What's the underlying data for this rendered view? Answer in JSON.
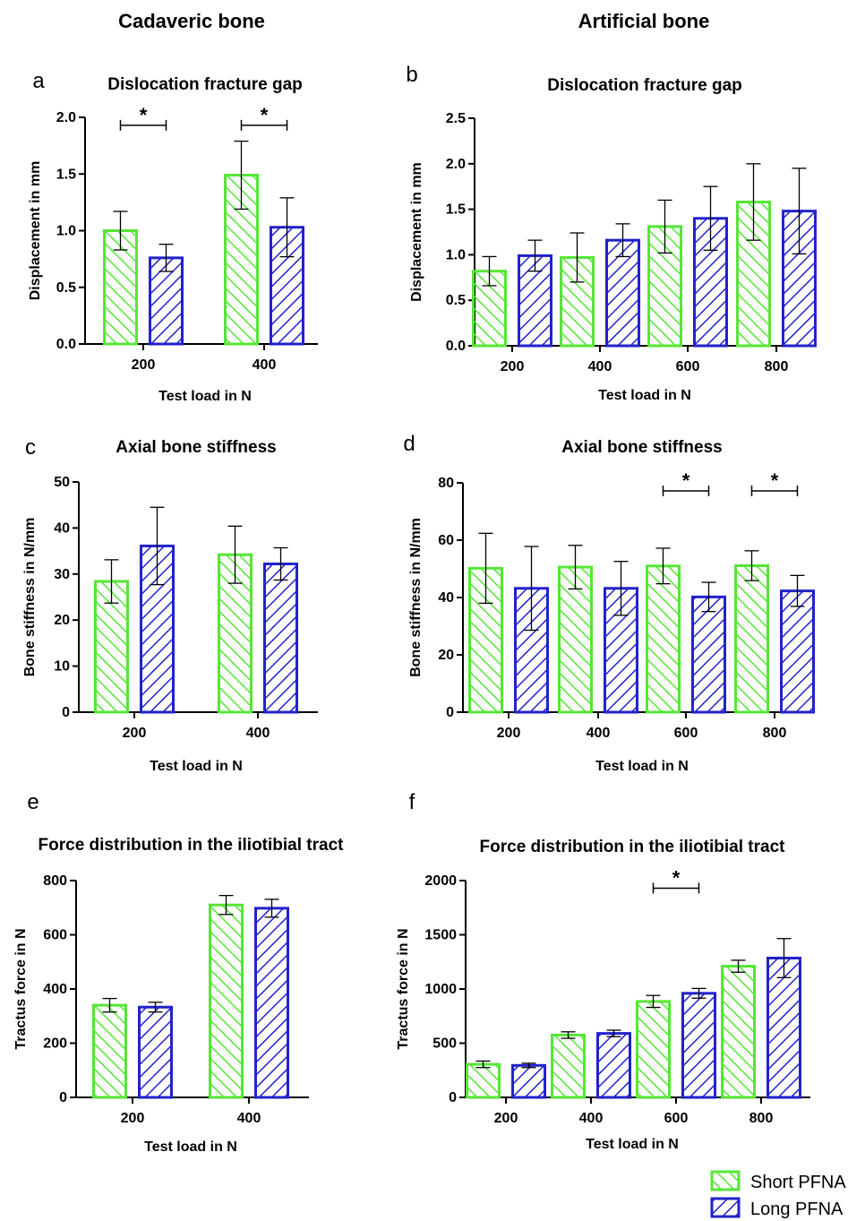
{
  "column_headers": [
    "Cadaveric bone",
    "Artificial bone"
  ],
  "colors": {
    "short": "#55e635",
    "long": "#2222cc",
    "axis": "#000000",
    "error": "#000000"
  },
  "legend": [
    {
      "label": "Short PFNA",
      "color": "#55e635"
    },
    {
      "label": "Long PFNA",
      "color": "#2222cc"
    }
  ],
  "chart_data": [
    {
      "panel": "a",
      "type": "bar",
      "title": "Dislocation fracture gap",
      "xlabel": "Test load in N",
      "ylabel": "Displacement in mm",
      "categories": [
        "200",
        "400"
      ],
      "ylim": [
        0,
        2.0
      ],
      "yticks": [
        "0.0",
        "0.5",
        "1.0",
        "1.5",
        "2.0"
      ],
      "series": [
        {
          "name": "Short PFNA",
          "values": [
            1.0,
            1.49
          ],
          "err": [
            0.17,
            0.3
          ]
        },
        {
          "name": "Long PFNA",
          "values": [
            0.76,
            1.03
          ],
          "err": [
            0.12,
            0.26
          ]
        }
      ],
      "significance": [
        {
          "category": 0,
          "label": "*"
        },
        {
          "category": 1,
          "label": "*"
        }
      ]
    },
    {
      "panel": "b",
      "type": "bar",
      "title": "Dislocation fracture gap",
      "xlabel": "Test load in N",
      "ylabel": "Displacement in mm",
      "categories": [
        "200",
        "400",
        "600",
        "800"
      ],
      "ylim": [
        0,
        2.5
      ],
      "yticks": [
        "0.0",
        "0.5",
        "1.0",
        "1.5",
        "2.0",
        "2.5"
      ],
      "series": [
        {
          "name": "Short PFNA",
          "values": [
            0.82,
            0.97,
            1.31,
            1.58
          ],
          "err": [
            0.16,
            0.27,
            0.29,
            0.42
          ]
        },
        {
          "name": "Long PFNA",
          "values": [
            0.99,
            1.16,
            1.4,
            1.48
          ],
          "err": [
            0.17,
            0.18,
            0.35,
            0.47
          ]
        }
      ],
      "significance": []
    },
    {
      "panel": "c",
      "type": "bar",
      "title": "Axial bone stiffness",
      "xlabel": "Test load in N",
      "ylabel": "Bone stiffness in N/mm",
      "categories": [
        "200",
        "400"
      ],
      "ylim": [
        0,
        50
      ],
      "yticks": [
        "0",
        "10",
        "20",
        "30",
        "40",
        "50"
      ],
      "series": [
        {
          "name": "Short PFNA",
          "values": [
            28.4,
            34.2
          ],
          "err": [
            4.7,
            6.2
          ]
        },
        {
          "name": "Long PFNA",
          "values": [
            36.1,
            32.2
          ],
          "err": [
            8.4,
            3.5
          ]
        }
      ],
      "significance": []
    },
    {
      "panel": "d",
      "type": "bar",
      "title": "Axial bone stiffness",
      "xlabel": "Test load in N",
      "ylabel": "Bone stiffness in N/mm",
      "categories": [
        "200",
        "400",
        "600",
        "800"
      ],
      "ylim": [
        0,
        80
      ],
      "yticks": [
        "0",
        "20",
        "40",
        "60",
        "80"
      ],
      "series": [
        {
          "name": "Short PFNA",
          "values": [
            50.2,
            50.6,
            51,
            51.1
          ],
          "err": [
            12.2,
            7.6,
            6.2,
            5.2
          ]
        },
        {
          "name": "Long PFNA",
          "values": [
            43.2,
            43.2,
            40.2,
            42.3
          ],
          "err": [
            14.6,
            9.4,
            5.1,
            5.4
          ]
        }
      ],
      "significance": [
        {
          "category": 2,
          "label": "*"
        },
        {
          "category": 3,
          "label": "*"
        }
      ]
    },
    {
      "panel": "e",
      "type": "bar",
      "title": "Force distribution in the iliotibial tract",
      "xlabel": "Test load in N",
      "ylabel": "Tractus force in N",
      "categories": [
        "200",
        "400"
      ],
      "ylim": [
        0,
        800
      ],
      "yticks": [
        "0",
        "200",
        "400",
        "600",
        "800"
      ],
      "series": [
        {
          "name": "Short PFNA",
          "values": [
            340,
            710
          ],
          "err": [
            25,
            35
          ]
        },
        {
          "name": "Long PFNA",
          "values": [
            333,
            698
          ],
          "err": [
            18,
            33
          ]
        }
      ],
      "significance": []
    },
    {
      "panel": "f",
      "type": "bar",
      "title": "Force distribution in the iliotibial tract",
      "xlabel": "Test load in N",
      "ylabel": "Tractus force in N",
      "categories": [
        "200",
        "400",
        "600",
        "800"
      ],
      "ylim": [
        0,
        2000
      ],
      "yticks": [
        "0",
        "500",
        "1000",
        "1500",
        "2000"
      ],
      "series": [
        {
          "name": "Short PFNA",
          "values": [
            305,
            575,
            885,
            1210
          ],
          "err": [
            30,
            30,
            55,
            55
          ]
        },
        {
          "name": "Long PFNA",
          "values": [
            295,
            590,
            960,
            1285
          ],
          "err": [
            20,
            30,
            45,
            180
          ]
        }
      ],
      "significance": [
        {
          "category": 2,
          "label": "*"
        }
      ]
    }
  ]
}
